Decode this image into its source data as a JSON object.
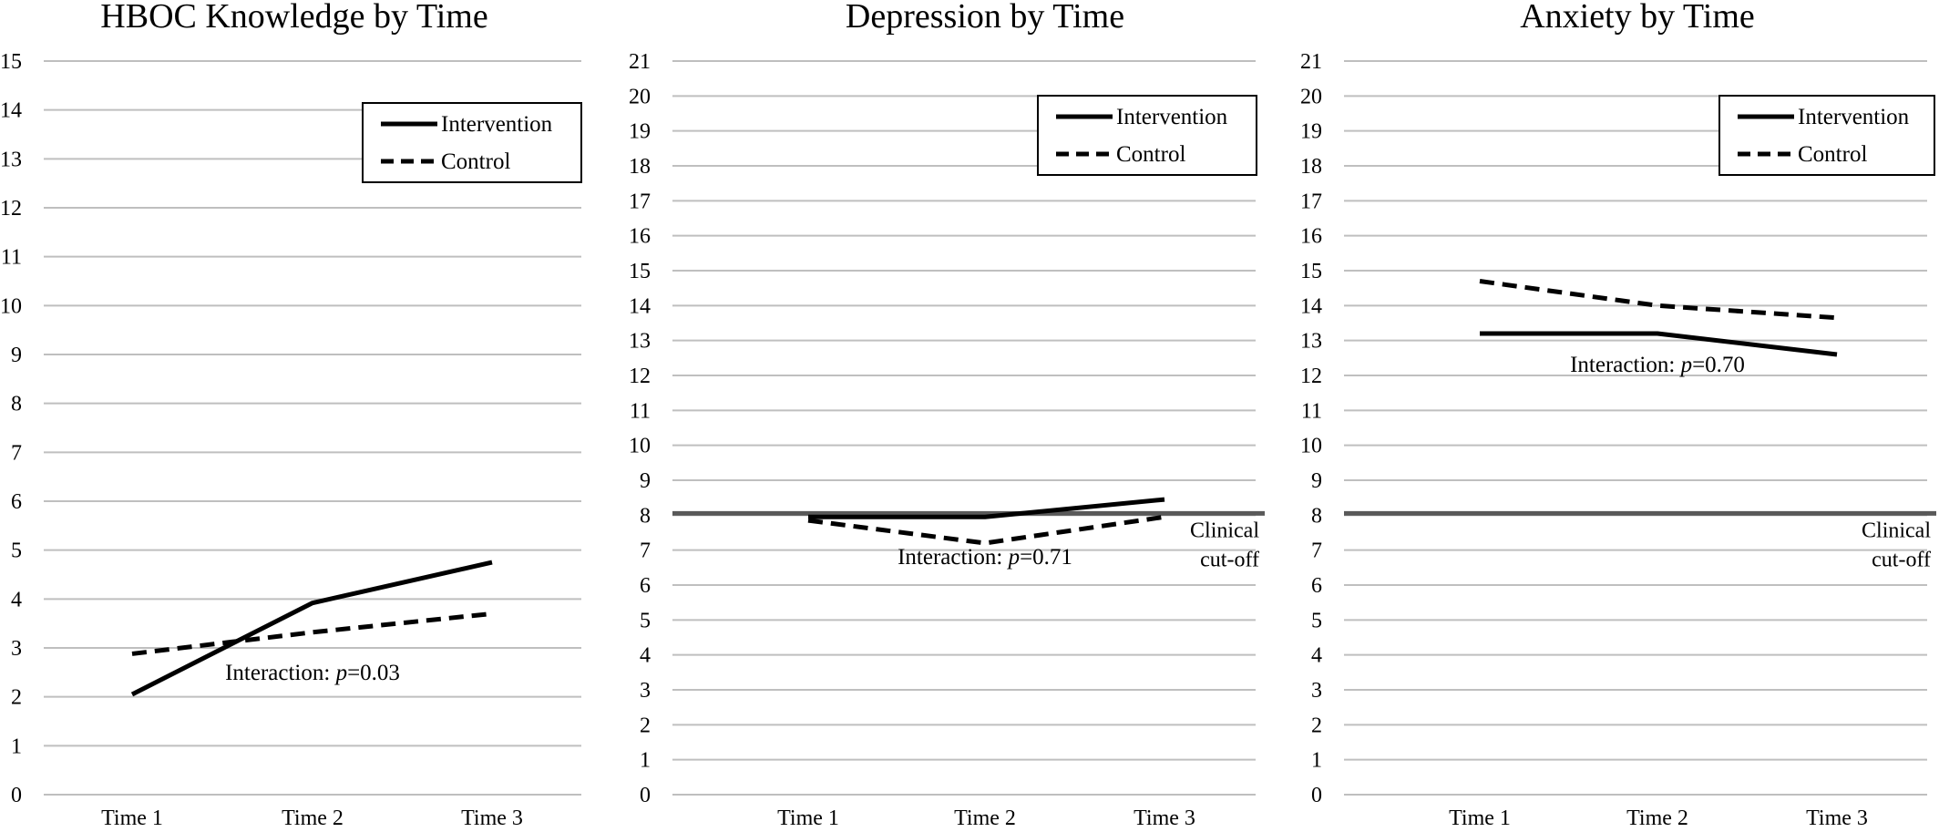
{
  "chart_data": [
    {
      "type": "line",
      "title": "HBOC Knowledge by Time",
      "categories": [
        "Time 1",
        "Time 2",
        "Time 3"
      ],
      "ylim": [
        0,
        15
      ],
      "yticks": [
        0,
        1,
        2,
        3,
        4,
        5,
        6,
        7,
        8,
        9,
        10,
        11,
        12,
        13,
        14,
        15
      ],
      "grid": true,
      "legend_position": "top-right",
      "series": [
        {
          "name": "Intervention",
          "style": "solid",
          "values": [
            2.05,
            3.92,
            4.75
          ]
        },
        {
          "name": "Control",
          "style": "dashed",
          "values": [
            2.88,
            3.32,
            3.7
          ]
        }
      ],
      "annotation": {
        "prefix": "Interaction: ",
        "p_symbol": "p",
        "suffix": "=0.03",
        "x_cat": 1,
        "y": 2.35
      },
      "reference_line": null
    },
    {
      "type": "line",
      "title": "Depression by Time",
      "categories": [
        "Time 1",
        "Time 2",
        "Time 3"
      ],
      "ylim": [
        0,
        21
      ],
      "yticks": [
        0,
        1,
        2,
        3,
        4,
        5,
        6,
        7,
        8,
        9,
        10,
        11,
        12,
        13,
        14,
        15,
        16,
        17,
        18,
        19,
        20,
        21
      ],
      "grid": true,
      "legend_position": "top-right",
      "series": [
        {
          "name": "Intervention",
          "style": "solid",
          "values": [
            7.95,
            7.95,
            8.45
          ]
        },
        {
          "name": "Control",
          "style": "dashed",
          "values": [
            7.85,
            7.2,
            7.95
          ]
        }
      ],
      "annotation": {
        "prefix": "Interaction: ",
        "p_symbol": "p",
        "suffix": "=0.71",
        "x_cat": 1,
        "y": 6.6
      },
      "reference_line": {
        "y": 8.05,
        "label_lines": [
          "Clinical",
          "cut-off"
        ]
      }
    },
    {
      "type": "line",
      "title": "Anxiety by Time",
      "categories": [
        "Time 1",
        "Time 2",
        "Time 3"
      ],
      "ylim": [
        0,
        21
      ],
      "yticks": [
        0,
        1,
        2,
        3,
        4,
        5,
        6,
        7,
        8,
        9,
        10,
        11,
        12,
        13,
        14,
        15,
        16,
        17,
        18,
        19,
        20,
        21
      ],
      "grid": true,
      "legend_position": "top-right",
      "series": [
        {
          "name": "Intervention",
          "style": "solid",
          "values": [
            13.2,
            13.2,
            12.6
          ]
        },
        {
          "name": "Control",
          "style": "dashed",
          "values": [
            14.7,
            14.0,
            13.65
          ]
        }
      ],
      "annotation": {
        "prefix": "Interaction: ",
        "p_symbol": "p",
        "suffix": "=0.70",
        "x_cat": 1,
        "y": 12.1
      },
      "reference_line": {
        "y": 8.05,
        "label_lines": [
          "Clinical",
          "cut-off"
        ]
      }
    }
  ]
}
